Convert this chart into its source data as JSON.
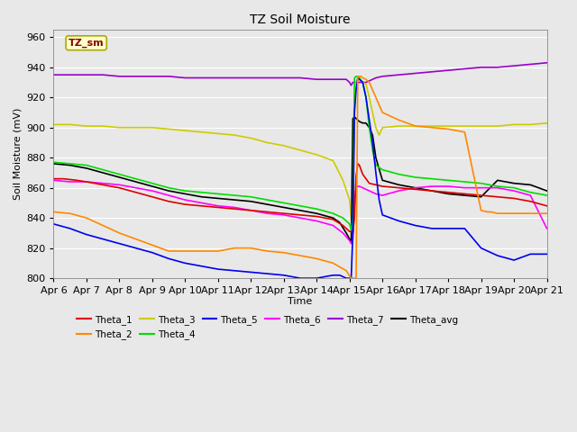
{
  "title": "TZ Soil Moisture",
  "xlabel": "Time",
  "ylabel": "Soil Moisture (mV)",
  "ylim": [
    800,
    965
  ],
  "xlim": [
    0,
    15
  ],
  "x_tick_labels": [
    "Apr 6",
    "Apr 7",
    "Apr 8",
    "Apr 9",
    "Apr 10",
    "Apr 11",
    "Apr 12",
    "Apr 13",
    "Apr 14",
    "Apr 15",
    "Apr 16",
    "Apr 17",
    "Apr 18",
    "Apr 19",
    "Apr 20",
    "Apr 21"
  ],
  "yticks": [
    800,
    820,
    840,
    860,
    880,
    900,
    920,
    940,
    960
  ],
  "colors": {
    "Theta_1": "#dd0000",
    "Theta_2": "#ff8800",
    "Theta_3": "#cccc00",
    "Theta_4": "#00dd00",
    "Theta_5": "#0000ee",
    "Theta_6": "#ff00ff",
    "Theta_7": "#9900cc",
    "Theta_avg": "#000000"
  },
  "background_color": "#e8e8e8",
  "plot_bg_color": "#e8e8e8",
  "grid_color": "#ffffff",
  "label_box_color": "#ffffcc",
  "label_box_edge": "#aaaa00",
  "label_text_color": "#880000",
  "series": {
    "Theta_1": {
      "x": [
        0,
        0.3,
        0.7,
        1,
        1.5,
        2,
        2.5,
        3,
        3.5,
        4,
        4.5,
        5,
        5.5,
        6,
        6.5,
        7,
        7.5,
        8,
        8.5,
        8.8,
        9.0,
        9.05,
        9.1,
        9.15,
        9.2,
        9.25,
        9.3,
        9.35,
        9.4,
        9.6,
        9.8,
        10,
        10.5,
        11,
        11.5,
        12,
        12.5,
        13,
        13.5,
        14,
        14.5,
        15
      ],
      "y": [
        866,
        866,
        865,
        864,
        862,
        860,
        857,
        854,
        851,
        849,
        848,
        847,
        846,
        845,
        844,
        843,
        842,
        841,
        839,
        835,
        831,
        831,
        830,
        840,
        868,
        876,
        875,
        872,
        869,
        863,
        862,
        861,
        860,
        859,
        858,
        857,
        856,
        855,
        854,
        853,
        851,
        848
      ]
    },
    "Theta_2": {
      "x": [
        0,
        0.5,
        1,
        1.5,
        2,
        2.5,
        3,
        3.5,
        4,
        4.5,
        5,
        5.5,
        6,
        6.5,
        7,
        7.5,
        8,
        8.5,
        8.9,
        9.05,
        9.1,
        9.15,
        9.2,
        9.25,
        9.3,
        9.35,
        9.4,
        9.5,
        9.6,
        9.7,
        9.8,
        9.9,
        10,
        10.5,
        11,
        11.5,
        12,
        12.5,
        13,
        13.2,
        13.3,
        13.5,
        14,
        14.5,
        15
      ],
      "y": [
        844,
        843,
        840,
        835,
        830,
        826,
        822,
        818,
        818,
        818,
        818,
        820,
        820,
        818,
        817,
        815,
        813,
        810,
        805,
        800,
        800,
        800,
        800,
        934,
        934,
        934,
        933,
        932,
        930,
        925,
        920,
        915,
        910,
        905,
        901,
        900,
        899,
        897,
        845,
        844,
        844,
        843,
        843,
        843,
        843
      ]
    },
    "Theta_3": {
      "x": [
        0,
        0.5,
        1,
        1.5,
        2,
        2.5,
        3,
        3.5,
        4,
        4.5,
        5,
        5.5,
        6,
        6.5,
        7,
        7.5,
        8,
        8.5,
        8.8,
        9.0,
        9.05,
        9.1,
        9.15,
        9.2,
        9.25,
        9.3,
        9.4,
        9.5,
        9.6,
        9.7,
        9.8,
        9.9,
        10,
        10.5,
        11,
        11.5,
        12,
        12.5,
        13,
        13.5,
        14,
        14.5,
        15
      ],
      "y": [
        902,
        902,
        901,
        901,
        900,
        900,
        900,
        899,
        898,
        897,
        896,
        895,
        893,
        890,
        888,
        885,
        882,
        878,
        865,
        852,
        840,
        830,
        920,
        930,
        933,
        932,
        930,
        929,
        920,
        910,
        900,
        895,
        900,
        901,
        901,
        901,
        901,
        901,
        901,
        901,
        902,
        902,
        903
      ]
    },
    "Theta_4": {
      "x": [
        0,
        0.5,
        1,
        1.5,
        2,
        2.5,
        3,
        3.5,
        4,
        4.5,
        5,
        5.5,
        6,
        6.5,
        7,
        7.5,
        8,
        8.5,
        8.8,
        9.0,
        9.05,
        9.1,
        9.15,
        9.2,
        9.25,
        9.3,
        9.4,
        9.5,
        9.6,
        9.7,
        9.8,
        10,
        10.5,
        11,
        11.5,
        12,
        12.5,
        13,
        13.5,
        14,
        14.5,
        15
      ],
      "y": [
        877,
        876,
        875,
        872,
        869,
        866,
        863,
        860,
        858,
        857,
        856,
        855,
        854,
        852,
        850,
        848,
        846,
        843,
        840,
        836,
        832,
        840,
        933,
        934,
        934,
        933,
        930,
        920,
        900,
        885,
        875,
        872,
        869,
        867,
        866,
        865,
        864,
        863,
        861,
        860,
        857,
        855
      ]
    },
    "Theta_5": {
      "x": [
        0,
        0.5,
        1,
        1.5,
        2,
        2.5,
        3,
        3.5,
        4,
        4.5,
        5,
        5.5,
        6,
        6.5,
        7,
        7.5,
        8,
        8.5,
        8.7,
        8.9,
        9.0,
        9.05,
        9.1,
        9.15,
        9.2,
        9.25,
        9.3,
        9.4,
        9.5,
        9.6,
        9.7,
        9.8,
        9.9,
        10,
        10.5,
        11,
        11.5,
        12,
        12.5,
        13,
        13.5,
        14,
        14.5,
        15
      ],
      "y": [
        836,
        833,
        829,
        826,
        823,
        820,
        817,
        813,
        810,
        808,
        806,
        805,
        804,
        803,
        802,
        800,
        800,
        802,
        802,
        800,
        800,
        800,
        830,
        910,
        925,
        933,
        932,
        930,
        920,
        905,
        890,
        870,
        852,
        842,
        838,
        835,
        833,
        833,
        833,
        820,
        815,
        812,
        816,
        816
      ]
    },
    "Theta_6": {
      "x": [
        0,
        0.5,
        1,
        1.5,
        2,
        2.5,
        3,
        3.5,
        4,
        4.5,
        5,
        5.5,
        6,
        6.5,
        7,
        7.5,
        8,
        8.5,
        8.8,
        9.0,
        9.05,
        9.1,
        9.15,
        9.2,
        9.25,
        9.3,
        9.4,
        9.5,
        9.6,
        9.7,
        9.8,
        10,
        10.5,
        11,
        11.5,
        12,
        12.5,
        13,
        13.5,
        14,
        14.5,
        15
      ],
      "y": [
        865,
        864,
        864,
        863,
        862,
        860,
        858,
        855,
        852,
        850,
        848,
        847,
        845,
        843,
        842,
        840,
        838,
        835,
        830,
        825,
        823,
        826,
        851,
        860,
        861,
        861,
        860,
        859,
        858,
        857,
        856,
        855,
        858,
        860,
        861,
        861,
        860,
        860,
        860,
        858,
        855,
        833
      ]
    },
    "Theta_7": {
      "x": [
        0,
        0.5,
        1,
        1.5,
        2,
        2.5,
        3,
        3.5,
        4,
        4.5,
        5,
        5.5,
        6,
        6.5,
        7,
        7.5,
        8,
        8.5,
        8.7,
        8.9,
        9.0,
        9.05,
        9.1,
        9.2,
        9.3,
        9.4,
        9.5,
        9.6,
        9.7,
        9.8,
        10,
        10.5,
        11,
        11.5,
        12,
        12.5,
        13,
        13.5,
        14,
        14.5,
        15
      ],
      "y": [
        935,
        935,
        935,
        935,
        934,
        934,
        934,
        934,
        933,
        933,
        933,
        933,
        933,
        933,
        933,
        933,
        932,
        932,
        932,
        932,
        930,
        928,
        930,
        930,
        930,
        930,
        930,
        931,
        932,
        933,
        934,
        935,
        936,
        937,
        938,
        939,
        940,
        940,
        941,
        942,
        943
      ]
    },
    "Theta_avg": {
      "x": [
        0,
        0.5,
        1,
        1.5,
        2,
        2.5,
        3,
        3.5,
        4,
        4.5,
        5,
        5.5,
        6,
        6.5,
        7,
        7.5,
        8,
        8.5,
        8.7,
        8.9,
        9.0,
        9.05,
        9.1,
        9.15,
        9.2,
        9.25,
        9.3,
        9.4,
        9.5,
        9.6,
        9.7,
        9.8,
        10,
        10.5,
        11,
        11.5,
        12,
        12.5,
        13,
        13.5,
        14,
        14.5,
        15
      ],
      "y": [
        876,
        875,
        873,
        870,
        867,
        864,
        861,
        858,
        856,
        854,
        853,
        852,
        851,
        849,
        847,
        845,
        843,
        840,
        837,
        830,
        826,
        824,
        906,
        907,
        906,
        905,
        904,
        903,
        903,
        900,
        895,
        880,
        865,
        862,
        860,
        858,
        856,
        855,
        854,
        865,
        863,
        862,
        858
      ]
    }
  },
  "figsize": [
    6.4,
    4.8
  ],
  "dpi": 100
}
